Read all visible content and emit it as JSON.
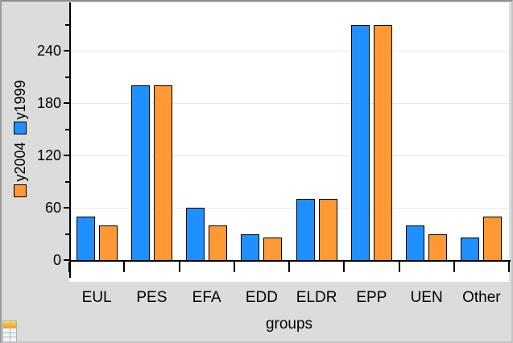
{
  "chart_data": {
    "type": "bar",
    "title": "",
    "xlabel": "groups",
    "ylabel": "",
    "categories": [
      "EUL",
      "PES",
      "EFA",
      "EDD",
      "ELDR",
      "EPP",
      "UEN",
      "Other"
    ],
    "series": [
      {
        "name": "y1999",
        "color": "#1E90FF",
        "values": [
          50,
          200,
          60,
          30,
          70,
          270,
          40,
          26
        ]
      },
      {
        "name": "y2004",
        "color": "#FF9933",
        "values": [
          40,
          200,
          40,
          26,
          70,
          270,
          30,
          50
        ]
      }
    ],
    "legend": {
      "position": "left-rotated-90ccw",
      "entries": [
        {
          "label": "y2004",
          "color": "#FF9933"
        },
        {
          "label": "y1999",
          "color": "#1E90FF"
        }
      ]
    },
    "y_axis": {
      "min": 0,
      "max": 300,
      "major_tick_interval": 60,
      "minor_tick_interval": 30,
      "major_tick_values": [
        0,
        60,
        120,
        180,
        240
      ],
      "tick_labels": [
        "0",
        "60",
        "120",
        "180",
        "240"
      ],
      "minor_tick_values": [
        30,
        90,
        150,
        210,
        270
      ],
      "gridlines_at": [
        60,
        120,
        180,
        240
      ],
      "grid": true
    },
    "x_axis": {
      "label": "groups",
      "category_boundary_ticks": true
    },
    "layout": {
      "bar_pair_order": [
        "y1999",
        "y2004"
      ],
      "legend_reads_bottom_to_top": true
    }
  },
  "colors": {
    "background": "#DCDCDC",
    "plot_background": "#FFFFFF",
    "axis": "#000000",
    "gridline": "#E8E8E8",
    "bar_border": "#000000",
    "frame": "#A6A6A6"
  },
  "icons": {
    "spreadsheet_icon": "mini data-table with orange header row"
  }
}
